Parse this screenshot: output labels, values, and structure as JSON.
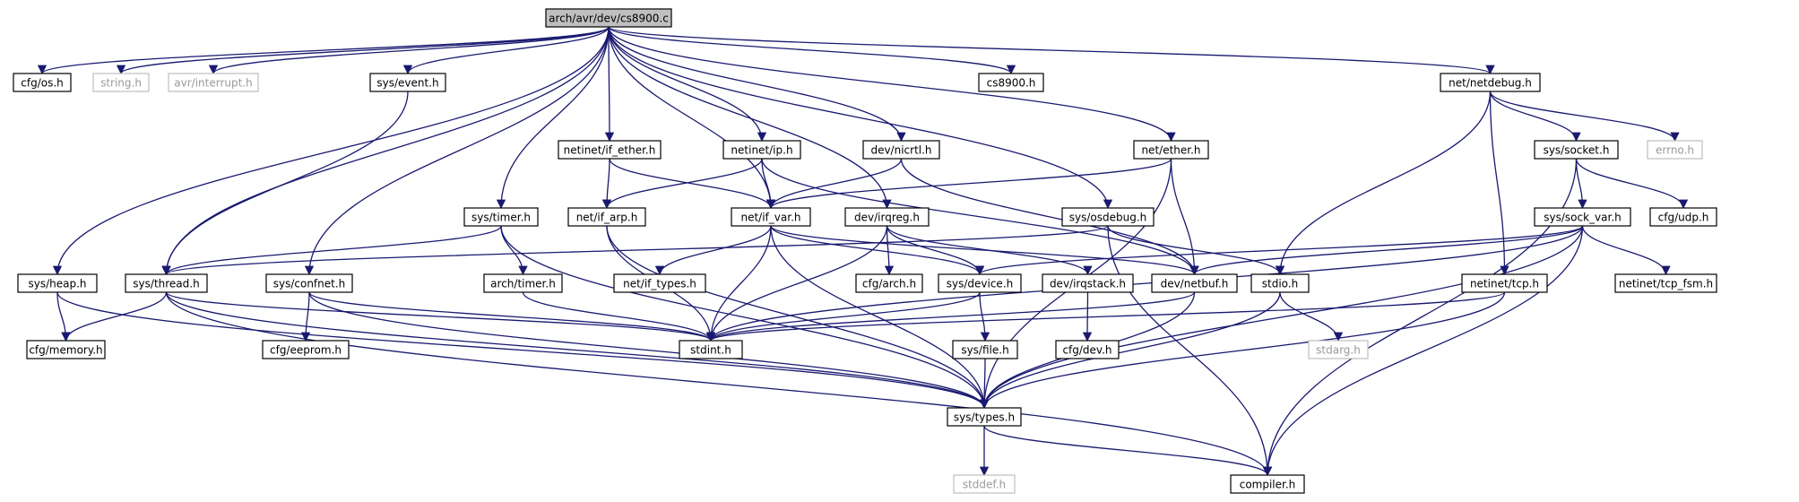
{
  "colors": {
    "edge": "#191970",
    "root_fill": "#bfbfbf",
    "local_border": "#000000",
    "system_border": "#bfbfbf",
    "system_text": "#9a9a9a"
  },
  "nodes": [
    {
      "id": "root",
      "label": "arch/avr/dev/cs8900.c",
      "kind": "root"
    },
    {
      "id": "cfg_os",
      "label": "cfg/os.h",
      "kind": "local"
    },
    {
      "id": "string",
      "label": "string.h",
      "kind": "system"
    },
    {
      "id": "avr_interrupt",
      "label": "avr/interrupt.h",
      "kind": "system"
    },
    {
      "id": "sys_event",
      "label": "sys/event.h",
      "kind": "local"
    },
    {
      "id": "cs8900_h",
      "label": "cs8900.h",
      "kind": "local"
    },
    {
      "id": "net_netdebug",
      "label": "net/netdebug.h",
      "kind": "local"
    },
    {
      "id": "netinet_if_ether",
      "label": "netinet/if_ether.h",
      "kind": "local"
    },
    {
      "id": "netinet_ip",
      "label": "netinet/ip.h",
      "kind": "local"
    },
    {
      "id": "dev_nicrtl",
      "label": "dev/nicrtl.h",
      "kind": "local"
    },
    {
      "id": "net_ether",
      "label": "net/ether.h",
      "kind": "local"
    },
    {
      "id": "sys_socket",
      "label": "sys/socket.h",
      "kind": "local"
    },
    {
      "id": "errno",
      "label": "errno.h",
      "kind": "system"
    },
    {
      "id": "sys_timer",
      "label": "sys/timer.h",
      "kind": "local"
    },
    {
      "id": "net_if_arp",
      "label": "net/if_arp.h",
      "kind": "local"
    },
    {
      "id": "net_if_var",
      "label": "net/if_var.h",
      "kind": "local"
    },
    {
      "id": "dev_irqreg",
      "label": "dev/irqreg.h",
      "kind": "local"
    },
    {
      "id": "sys_osdebug",
      "label": "sys/osdebug.h",
      "kind": "local"
    },
    {
      "id": "sys_sock_var",
      "label": "sys/sock_var.h",
      "kind": "local"
    },
    {
      "id": "cfg_udp",
      "label": "cfg/udp.h",
      "kind": "local"
    },
    {
      "id": "sys_heap",
      "label": "sys/heap.h",
      "kind": "local"
    },
    {
      "id": "sys_thread",
      "label": "sys/thread.h",
      "kind": "local"
    },
    {
      "id": "sys_confnet",
      "label": "sys/confnet.h",
      "kind": "local"
    },
    {
      "id": "arch_timer",
      "label": "arch/timer.h",
      "kind": "local"
    },
    {
      "id": "net_if_types",
      "label": "net/if_types.h",
      "kind": "local"
    },
    {
      "id": "cfg_arch",
      "label": "cfg/arch.h",
      "kind": "local"
    },
    {
      "id": "sys_device",
      "label": "sys/device.h",
      "kind": "local"
    },
    {
      "id": "dev_irqstack",
      "label": "dev/irqstack.h",
      "kind": "local"
    },
    {
      "id": "dev_netbuf",
      "label": "dev/netbuf.h",
      "kind": "local"
    },
    {
      "id": "stdio",
      "label": "stdio.h",
      "kind": "local"
    },
    {
      "id": "netinet_tcp",
      "label": "netinet/tcp.h",
      "kind": "local"
    },
    {
      "id": "netinet_tcp_fsm",
      "label": "netinet/tcp_fsm.h",
      "kind": "local"
    },
    {
      "id": "cfg_memory",
      "label": "cfg/memory.h",
      "kind": "local"
    },
    {
      "id": "cfg_eeprom",
      "label": "cfg/eeprom.h",
      "kind": "local"
    },
    {
      "id": "stdint",
      "label": "stdint.h",
      "kind": "local"
    },
    {
      "id": "cfg_dev",
      "label": "cfg/dev.h",
      "kind": "local"
    },
    {
      "id": "stdarg",
      "label": "stdarg.h",
      "kind": "system"
    },
    {
      "id": "sys_file",
      "label": "sys/file.h",
      "kind": "local"
    },
    {
      "id": "sys_types",
      "label": "sys/types.h",
      "kind": "local"
    },
    {
      "id": "stddef",
      "label": "stddef.h",
      "kind": "system"
    },
    {
      "id": "compiler",
      "label": "compiler.h",
      "kind": "local"
    }
  ],
  "edges": [
    [
      "root",
      "cfg_os"
    ],
    [
      "root",
      "string"
    ],
    [
      "root",
      "avr_interrupt"
    ],
    [
      "root",
      "sys_event"
    ],
    [
      "root",
      "cs8900_h"
    ],
    [
      "root",
      "net_netdebug"
    ],
    [
      "root",
      "netinet_if_ether"
    ],
    [
      "root",
      "netinet_ip"
    ],
    [
      "root",
      "dev_nicrtl"
    ],
    [
      "root",
      "net_ether"
    ],
    [
      "root",
      "sys_timer"
    ],
    [
      "root",
      "net_if_var"
    ],
    [
      "root",
      "dev_irqreg"
    ],
    [
      "root",
      "sys_osdebug"
    ],
    [
      "root",
      "sys_heap"
    ],
    [
      "root",
      "sys_thread"
    ],
    [
      "root",
      "sys_confnet"
    ],
    [
      "sys_event",
      "sys_thread"
    ],
    [
      "net_netdebug",
      "sys_socket"
    ],
    [
      "net_netdebug",
      "errno"
    ],
    [
      "net_netdebug",
      "stdio"
    ],
    [
      "net_netdebug",
      "netinet_tcp"
    ],
    [
      "netinet_if_ether",
      "net_if_arp"
    ],
    [
      "netinet_if_ether",
      "net_if_var"
    ],
    [
      "netinet_ip",
      "net_if_arp"
    ],
    [
      "netinet_ip",
      "net_if_var"
    ],
    [
      "netinet_ip",
      "dev_netbuf"
    ],
    [
      "dev_nicrtl",
      "net_if_var"
    ],
    [
      "dev_nicrtl",
      "dev_netbuf"
    ],
    [
      "net_ether",
      "net_if_var"
    ],
    [
      "net_ether",
      "dev_netbuf"
    ],
    [
      "net_ether",
      "sys_types"
    ],
    [
      "sys_socket",
      "sys_sock_var"
    ],
    [
      "sys_socket",
      "cfg_udp"
    ],
    [
      "sys_socket",
      "compiler"
    ],
    [
      "sys_timer",
      "arch_timer"
    ],
    [
      "sys_timer",
      "sys_thread"
    ],
    [
      "sys_timer",
      "sys_types"
    ],
    [
      "net_if_arp",
      "stdint"
    ],
    [
      "net_if_arp",
      "sys_types"
    ],
    [
      "net_if_var",
      "net_if_types"
    ],
    [
      "net_if_var",
      "stdint"
    ],
    [
      "net_if_var",
      "sys_device"
    ],
    [
      "net_if_var",
      "dev_netbuf"
    ],
    [
      "net_if_var",
      "sys_types"
    ],
    [
      "dev_irqreg",
      "cfg_arch"
    ],
    [
      "dev_irqreg",
      "sys_device"
    ],
    [
      "dev_irqreg",
      "dev_irqstack"
    ],
    [
      "dev_irqreg",
      "stdint"
    ],
    [
      "sys_osdebug",
      "sys_thread"
    ],
    [
      "sys_osdebug",
      "stdio"
    ],
    [
      "sys_osdebug",
      "compiler"
    ],
    [
      "sys_sock_var",
      "sys_device"
    ],
    [
      "sys_sock_var",
      "dev_netbuf"
    ],
    [
      "sys_sock_var",
      "netinet_tcp_fsm"
    ],
    [
      "sys_sock_var",
      "stdint"
    ],
    [
      "sys_sock_var",
      "sys_types"
    ],
    [
      "sys_sock_var",
      "compiler"
    ],
    [
      "sys_heap",
      "cfg_memory"
    ],
    [
      "sys_heap",
      "sys_types"
    ],
    [
      "sys_thread",
      "cfg_memory"
    ],
    [
      "sys_thread",
      "stdint"
    ],
    [
      "sys_thread",
      "sys_types"
    ],
    [
      "sys_thread",
      "compiler"
    ],
    [
      "sys_confnet",
      "cfg_eeprom"
    ],
    [
      "sys_confnet",
      "stdint"
    ],
    [
      "sys_confnet",
      "sys_types"
    ],
    [
      "arch_timer",
      "stdint"
    ],
    [
      "sys_device",
      "sys_file"
    ],
    [
      "sys_device",
      "stdint"
    ],
    [
      "dev_irqstack",
      "cfg_dev"
    ],
    [
      "dev_netbuf",
      "stdint"
    ],
    [
      "dev_netbuf",
      "sys_types"
    ],
    [
      "stdio",
      "stdarg"
    ],
    [
      "stdio",
      "sys_types"
    ],
    [
      "netinet_tcp",
      "stdint"
    ],
    [
      "netinet_tcp",
      "sys_types"
    ],
    [
      "sys_file",
      "sys_types"
    ],
    [
      "sys_types",
      "stddef"
    ],
    [
      "sys_types",
      "compiler"
    ]
  ]
}
